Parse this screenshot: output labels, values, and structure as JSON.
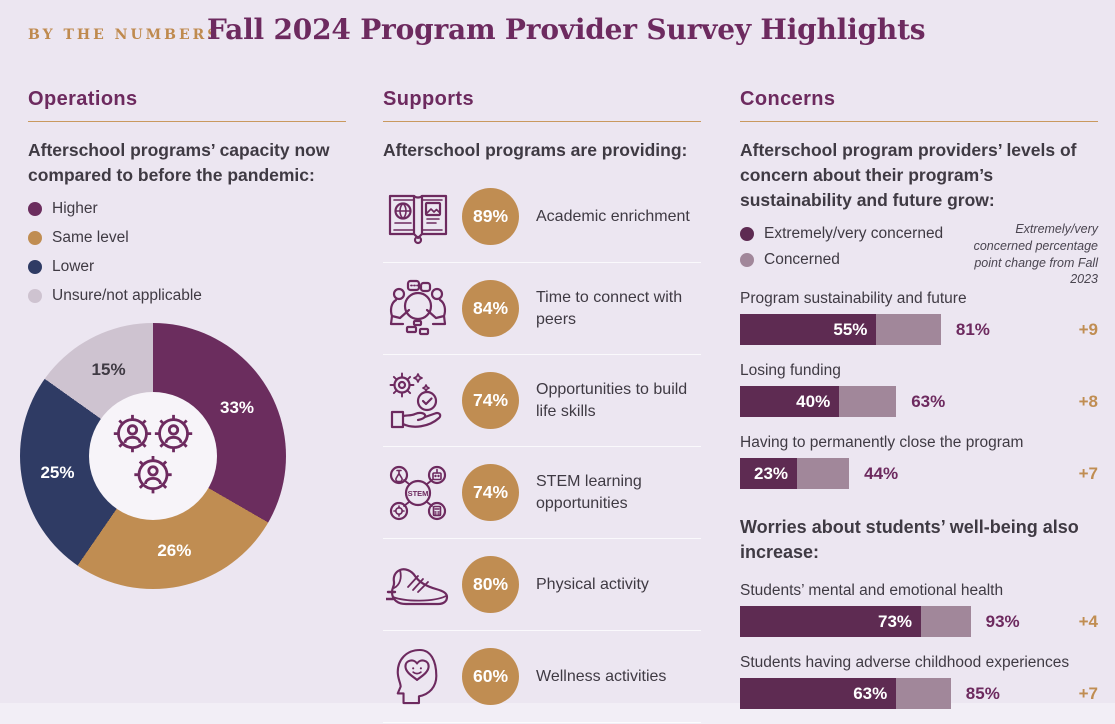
{
  "page": {
    "kicker": "BY THE NUMBERS",
    "title": "Fall 2024 Program Provider Survey Highlights"
  },
  "colors": {
    "background": "#ece6f1",
    "heading_purple": "#6d2a5f",
    "accent_tan": "#c08d52",
    "underline_tan": "#c9995f",
    "body_text": "#3f3a43",
    "bar_dark_purple": "#5e2b52",
    "bar_light_mauve": "#a1879a"
  },
  "operations": {
    "heading": "Operations",
    "subhead": "Afterschool programs’ capacity now compared to before the pandemic:"
  },
  "supports": {
    "heading": "Supports",
    "subhead": "Afterschool programs are providing:",
    "items": [
      {
        "icon": "academic-book-icon",
        "pct": "89%",
        "label": "Academic enrichment"
      },
      {
        "icon": "peers-icon",
        "pct": "84%",
        "label": "Time to connect with peers"
      },
      {
        "icon": "life-skills-icon",
        "pct": "74%",
        "label": "Opportunities to build life skills"
      },
      {
        "icon": "stem-icon",
        "pct": "74%",
        "label": "STEM learning opportunities"
      },
      {
        "icon": "sneaker-icon",
        "pct": "80%",
        "label": "Physical activity"
      },
      {
        "icon": "wellness-head-icon",
        "pct": "60%",
        "label": "Wellness activities"
      }
    ]
  },
  "concerns": {
    "heading": "Concerns",
    "subhead": "Afterschool program providers’ levels of concern about their program’s sustainability and future grow:"
  },
  "chart_data": [
    {
      "type": "pie",
      "donut": true,
      "title": "Afterschool programs’ capacity now compared to before the pandemic",
      "labels": [
        "Higher",
        "Same level",
        "Lower",
        "Unsure/not applicable"
      ],
      "values": [
        33,
        26,
        25,
        15
      ],
      "unit": "%",
      "colors": [
        "#6b2d5e",
        "#c08d52",
        "#2f3b64",
        "#cec3d0"
      ],
      "label_colors": [
        "#ffffff",
        "#ffffff",
        "#ffffff",
        "#3f3a43"
      ],
      "start_angle_deg": 0,
      "direction": "clockwise",
      "center_icon": "gears-people-icon"
    },
    {
      "type": "bar",
      "orientation": "horizontal",
      "stacked": true,
      "unit": "%",
      "xlim": [
        0,
        100
      ],
      "legend": [
        {
          "label": "Extremely/very concerned",
          "color": "#5e2b52"
        },
        {
          "label": "Concerned",
          "color": "#a1879a"
        }
      ],
      "note": "Extremely/very concerned percentage point change from Fall 2023",
      "rows": [
        {
          "label": "Program sustainability and future",
          "extreme": 55,
          "total": 81,
          "change": "+9"
        },
        {
          "label": "Losing funding",
          "extreme": 40,
          "total": 63,
          "change": "+8"
        },
        {
          "label": "Having to permanently close the program",
          "extreme": 23,
          "total": 44,
          "change": "+7"
        }
      ]
    },
    {
      "type": "bar",
      "orientation": "horizontal",
      "stacked": true,
      "unit": "%",
      "xlim": [
        0,
        100
      ],
      "heading": "Worries about students’ well-being also increase:",
      "rows": [
        {
          "label": "Students’ mental and emotional health",
          "extreme": 73,
          "total": 93,
          "change": "+4"
        },
        {
          "label": "Students having adverse childhood experiences",
          "extreme": 63,
          "total": 85,
          "change": "+7"
        }
      ]
    }
  ]
}
